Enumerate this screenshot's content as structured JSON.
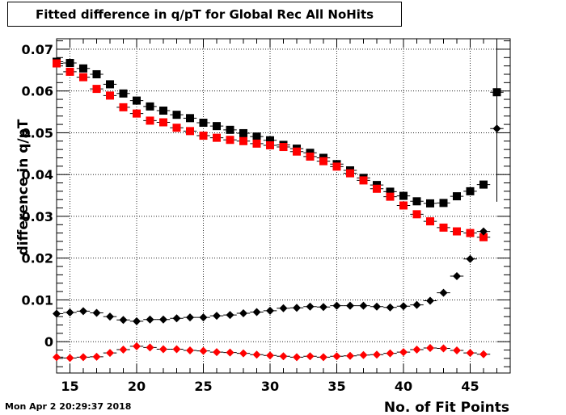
{
  "header": {
    "title": "Fitted difference in q/pT for Global Rec All NoHits"
  },
  "footer": {
    "timestamp": "Mon Apr  2 20:29:37 2018"
  },
  "chart_data": {
    "type": "scatter",
    "title": "Fitted difference in q/pT for Global Rec All NoHits",
    "xlabel": "No. of Fit Points",
    "ylabel": "difference in q/pT",
    "xlim": [
      14,
      48
    ],
    "ylim": [
      -0.0075,
      0.0725
    ],
    "grid": true,
    "x_ticks": [
      15,
      20,
      25,
      30,
      35,
      40,
      45
    ],
    "y_ticks": [
      0,
      0.01,
      0.02,
      0.03,
      0.04,
      0.05,
      0.06,
      0.07
    ],
    "y_tick_labels": [
      "0",
      "0.01",
      "0.02",
      "0.03",
      "0.04",
      "0.05",
      "0.06",
      "0.07"
    ],
    "series": [
      {
        "marker": "square",
        "color": "#000000",
        "x": [
          14,
          15,
          16,
          17,
          18,
          19,
          20,
          21,
          22,
          23,
          24,
          25,
          26,
          27,
          28,
          29,
          30,
          31,
          32,
          33,
          34,
          35,
          36,
          37,
          38,
          39,
          40,
          41,
          42,
          43,
          44,
          45,
          46,
          47
        ],
        "y": [
          0.067,
          0.0667,
          0.0654,
          0.064,
          0.0616,
          0.0594,
          0.0577,
          0.0563,
          0.0553,
          0.0543,
          0.0535,
          0.0524,
          0.0516,
          0.0507,
          0.0499,
          0.0491,
          0.0482,
          0.0471,
          0.0462,
          0.0452,
          0.044,
          0.0425,
          0.041,
          0.0392,
          0.0375,
          0.0359,
          0.0349,
          0.0336,
          0.0331,
          0.0332,
          0.0348,
          0.036,
          0.0376,
          0.0597
        ],
        "yerr": [
          0,
          0,
          0,
          0,
          0,
          0,
          0,
          0,
          0,
          0,
          0,
          0,
          0,
          0,
          0,
          0,
          0,
          0,
          0,
          0,
          0,
          0,
          0,
          0,
          0,
          0,
          0,
          0,
          0,
          0,
          0,
          0,
          0,
          0.0155
        ]
      },
      {
        "marker": "square",
        "color": "#ff0000",
        "x": [
          14,
          15,
          16,
          17,
          18,
          19,
          20,
          21,
          22,
          23,
          24,
          25,
          26,
          27,
          28,
          29,
          30,
          31,
          32,
          33,
          34,
          35,
          36,
          37,
          38,
          39,
          40,
          41,
          42,
          43,
          44,
          45,
          46
        ],
        "y": [
          0.0666,
          0.0646,
          0.0633,
          0.0605,
          0.0589,
          0.0561,
          0.0546,
          0.0529,
          0.0525,
          0.0512,
          0.0504,
          0.0493,
          0.0488,
          0.0483,
          0.048,
          0.0474,
          0.047,
          0.0466,
          0.0455,
          0.0443,
          0.0432,
          0.0419,
          0.0403,
          0.0386,
          0.0366,
          0.0347,
          0.0326,
          0.0305,
          0.0288,
          0.0273,
          0.0264,
          0.026,
          0.025
        ]
      },
      {
        "marker": "diamond",
        "color": "#000000",
        "x": [
          14,
          15,
          16,
          17,
          18,
          19,
          20,
          21,
          22,
          23,
          24,
          25,
          26,
          27,
          28,
          29,
          30,
          31,
          32,
          33,
          34,
          35,
          36,
          37,
          38,
          39,
          40,
          41,
          42,
          43,
          44,
          45,
          46,
          47
        ],
        "y": [
          0.0067,
          0.007,
          0.0073,
          0.0069,
          0.006,
          0.0052,
          0.0049,
          0.0053,
          0.0053,
          0.0056,
          0.0058,
          0.0058,
          0.0062,
          0.0064,
          0.0068,
          0.0071,
          0.0074,
          0.008,
          0.0081,
          0.0084,
          0.0083,
          0.0086,
          0.0086,
          0.0086,
          0.0084,
          0.0082,
          0.0085,
          0.0088,
          0.0098,
          0.0117,
          0.0157,
          0.0198,
          0.0264,
          0.051
        ],
        "yerr": [
          0,
          0,
          0,
          0,
          0,
          0,
          0,
          0,
          0,
          0,
          0,
          0,
          0,
          0,
          0,
          0,
          0,
          0,
          0,
          0,
          0,
          0,
          0,
          0,
          0,
          0,
          0,
          0,
          0,
          0,
          0,
          0,
          0,
          0.0175
        ]
      },
      {
        "marker": "diamond",
        "color": "#ff0000",
        "x": [
          14,
          15,
          16,
          17,
          18,
          19,
          20,
          21,
          22,
          23,
          24,
          25,
          26,
          27,
          28,
          29,
          30,
          31,
          32,
          33,
          34,
          35,
          36,
          37,
          38,
          39,
          40,
          41,
          42,
          43,
          44,
          45,
          46
        ],
        "y": [
          -0.0037,
          -0.0039,
          -0.0037,
          -0.0036,
          -0.0027,
          -0.0019,
          -0.0011,
          -0.0014,
          -0.0018,
          -0.0018,
          -0.0021,
          -0.0022,
          -0.0025,
          -0.0026,
          -0.0028,
          -0.0031,
          -0.0033,
          -0.0035,
          -0.0037,
          -0.0035,
          -0.0037,
          -0.0035,
          -0.0034,
          -0.0032,
          -0.0031,
          -0.0028,
          -0.0025,
          -0.0019,
          -0.0015,
          -0.0016,
          -0.0021,
          -0.0027,
          -0.003
        ]
      }
    ]
  }
}
